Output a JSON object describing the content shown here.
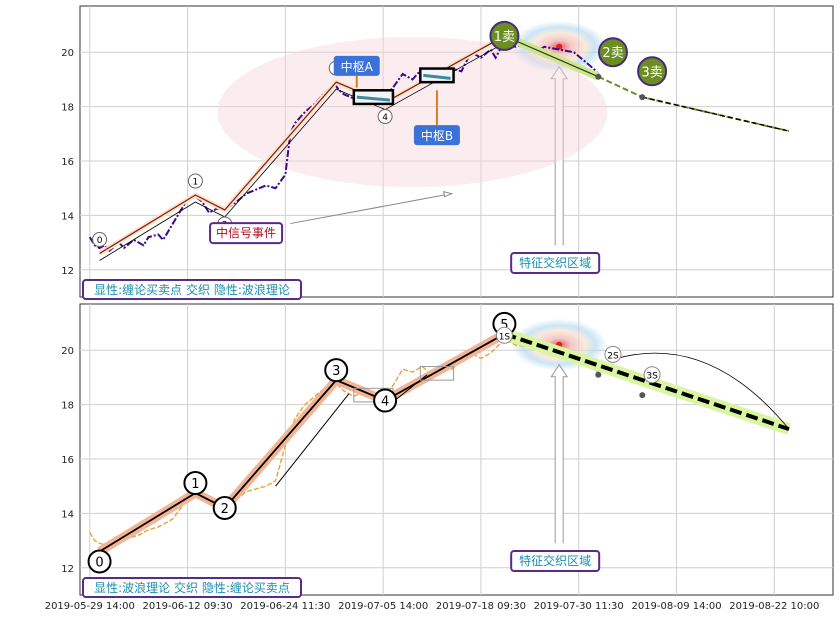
{
  "chart_data": {
    "type": "line",
    "x_ticks": [
      "2019-05-29 14:00",
      "2019-06-12 09:30",
      "2019-06-24 11:30",
      "2019-07-05 14:00",
      "2019-07-18 09:30",
      "2019-07-30 11:30",
      "2019-08-09 14:00",
      "2019-08-22 10:00"
    ],
    "y_ticks": [
      12,
      14,
      16,
      18,
      20
    ],
    "ylim": [
      11.0,
      21.7
    ],
    "xlim": [
      -0.1,
      7.6
    ],
    "colors": {
      "price_top": "#3a0a8a",
      "price_bottom": "#e8a33a",
      "stroke": "#7a1f10",
      "fill": "#f3b496",
      "green": "#6b8e23",
      "blue_box": "#3b72d9",
      "purple": "#5a2a8a",
      "teal": "#1a8fb0",
      "red_text": "#b01020",
      "dash_yellow": "#f0f090"
    },
    "panels": [
      {
        "id": "top",
        "legend_text": "显性:缠论买卖点 交织 隐性:波浪理论",
        "wave_points": [
          {
            "label": "0",
            "x": 0.1,
            "y": 12.6
          },
          {
            "label": "1",
            "x": 1.08,
            "y": 14.75
          },
          {
            "label": "2",
            "x": 1.38,
            "y": 14.2
          },
          {
            "label": "3",
            "x": 2.52,
            "y": 18.9
          },
          {
            "label": "4",
            "x": 3.02,
            "y": 18.15
          },
          {
            "label": "1卖",
            "x": 4.24,
            "y": 20.6
          }
        ],
        "extension": [
          {
            "x": 4.24,
            "y": 20.6
          },
          {
            "x": 5.2,
            "y": 19.1
          },
          {
            "x": 5.65,
            "y": 18.35
          },
          {
            "x": 7.15,
            "y": 17.1
          }
        ],
        "sell_points": [
          {
            "label": "1卖",
            "x": 4.24,
            "y": 20.6
          },
          {
            "label": "2卖",
            "x": 5.35,
            "y": 20.0
          },
          {
            "label": "3卖",
            "x": 5.75,
            "y": 19.3
          }
        ],
        "zs_labels": [
          "中枢A",
          "中枢B"
        ],
        "event_label": "中信号事件",
        "zone_label": "特征交织区域",
        "price": [
          [
            0,
            13.2
          ],
          [
            0.05,
            12.9
          ],
          [
            0.1,
            12.8
          ],
          [
            0.15,
            12.9
          ],
          [
            0.2,
            12.7
          ],
          [
            0.3,
            13.0
          ],
          [
            0.35,
            12.8
          ],
          [
            0.45,
            13.1
          ],
          [
            0.55,
            12.9
          ],
          [
            0.6,
            13.2
          ],
          [
            0.7,
            13.3
          ],
          [
            0.75,
            13.1
          ],
          [
            0.85,
            13.7
          ],
          [
            0.95,
            14.3
          ],
          [
            1.0,
            14.6
          ],
          [
            1.08,
            14.7
          ],
          [
            1.15,
            14.5
          ],
          [
            1.22,
            14.1
          ],
          [
            1.3,
            14.25
          ],
          [
            1.38,
            14.2
          ],
          [
            1.5,
            14.5
          ],
          [
            1.6,
            14.8
          ],
          [
            1.7,
            14.95
          ],
          [
            1.8,
            15.1
          ],
          [
            1.9,
            15.0
          ],
          [
            2.0,
            15.5
          ],
          [
            2.05,
            17.0
          ],
          [
            2.1,
            17.4
          ],
          [
            2.2,
            17.8
          ],
          [
            2.3,
            18.1
          ],
          [
            2.4,
            18.5
          ],
          [
            2.5,
            18.85
          ],
          [
            2.55,
            18.6
          ],
          [
            2.6,
            18.45
          ],
          [
            2.7,
            18.3
          ],
          [
            2.8,
            18.6
          ],
          [
            2.9,
            18.2
          ],
          [
            3.0,
            18.3
          ],
          [
            3.1,
            18.7
          ],
          [
            3.2,
            19.2
          ],
          [
            3.3,
            19.0
          ],
          [
            3.4,
            19.4
          ],
          [
            3.5,
            18.9
          ],
          [
            3.6,
            19.3
          ],
          [
            3.7,
            19.4
          ],
          [
            3.8,
            19.3
          ],
          [
            3.9,
            20.0
          ],
          [
            4.0,
            19.8
          ],
          [
            4.1,
            20.1
          ],
          [
            4.15,
            19.8
          ],
          [
            4.24,
            20.4
          ],
          [
            4.35,
            20.2
          ],
          [
            4.45,
            20.3
          ],
          [
            4.55,
            20.0
          ],
          [
            4.65,
            20.2
          ],
          [
            4.8,
            20.1
          ],
          [
            4.95,
            20.0
          ],
          [
            5.05,
            19.7
          ],
          [
            5.15,
            19.4
          ],
          [
            5.2,
            19.2
          ]
        ]
      },
      {
        "id": "bottom",
        "legend_text": "显性:波浪理论 交织 隐性:缠论买卖点",
        "wave_points": [
          {
            "label": "0",
            "x": 0.1,
            "y": 12.6
          },
          {
            "label": "1",
            "x": 1.08,
            "y": 14.75
          },
          {
            "label": "2",
            "x": 1.38,
            "y": 14.2
          },
          {
            "label": "3",
            "x": 2.52,
            "y": 18.9
          },
          {
            "label": "4",
            "x": 3.02,
            "y": 18.15
          },
          {
            "label": "5",
            "x": 4.24,
            "y": 20.6
          }
        ],
        "extension": [
          {
            "x": 4.24,
            "y": 20.6
          },
          {
            "x": 5.2,
            "y": 19.1
          },
          {
            "x": 5.65,
            "y": 18.35
          },
          {
            "x": 7.15,
            "y": 17.1
          }
        ],
        "sell_points": [
          {
            "label": "1S",
            "x": 4.24,
            "y": 20.55
          },
          {
            "label": "2S",
            "x": 5.35,
            "y": 19.85
          },
          {
            "label": "3S",
            "x": 5.75,
            "y": 19.1
          }
        ],
        "zone_label": "特征交织区域",
        "price": [
          [
            0,
            13.3
          ],
          [
            0.05,
            13.0
          ],
          [
            0.1,
            12.9
          ],
          [
            0.2,
            12.8
          ],
          [
            0.3,
            13.0
          ],
          [
            0.4,
            13.1
          ],
          [
            0.5,
            13.2
          ],
          [
            0.6,
            13.4
          ],
          [
            0.7,
            13.5
          ],
          [
            0.85,
            13.8
          ],
          [
            0.95,
            14.3
          ],
          [
            1.08,
            14.7
          ],
          [
            1.2,
            14.4
          ],
          [
            1.3,
            14.3
          ],
          [
            1.38,
            14.2
          ],
          [
            1.5,
            14.5
          ],
          [
            1.6,
            14.8
          ],
          [
            1.7,
            14.9
          ],
          [
            1.8,
            15.0
          ],
          [
            1.9,
            15.2
          ],
          [
            2.0,
            16.5
          ],
          [
            2.1,
            17.5
          ],
          [
            2.2,
            18.0
          ],
          [
            2.3,
            18.3
          ],
          [
            2.4,
            18.6
          ],
          [
            2.5,
            18.85
          ],
          [
            2.6,
            18.5
          ],
          [
            2.7,
            18.3
          ],
          [
            2.8,
            18.5
          ],
          [
            2.9,
            18.2
          ],
          [
            3.0,
            18.2
          ],
          [
            3.1,
            18.7
          ],
          [
            3.2,
            19.3
          ],
          [
            3.3,
            19.2
          ],
          [
            3.4,
            19.4
          ],
          [
            3.5,
            19.1
          ],
          [
            3.6,
            19.4
          ],
          [
            3.7,
            19.3
          ],
          [
            3.8,
            19.6
          ],
          [
            3.9,
            19.9
          ],
          [
            4.0,
            19.7
          ],
          [
            4.1,
            19.9
          ],
          [
            4.24,
            20.4
          ],
          [
            4.35,
            20.2
          ],
          [
            4.5,
            20.1
          ],
          [
            4.6,
            20.0
          ],
          [
            4.75,
            20.1
          ],
          [
            4.9,
            19.9
          ],
          [
            5.0,
            19.7
          ],
          [
            5.1,
            19.4
          ],
          [
            5.2,
            19.2
          ]
        ]
      }
    ]
  }
}
